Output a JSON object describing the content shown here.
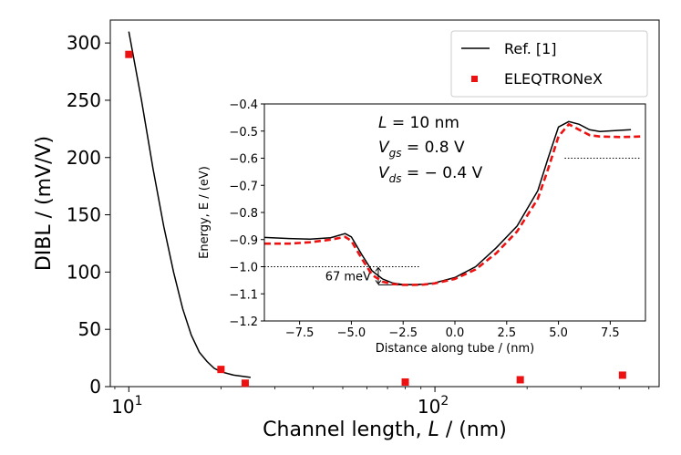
{
  "chart_data": [
    {
      "type": "line+scatter",
      "xscale": "log",
      "xlabel_pre": "Channel length, ",
      "xlabel_var": "L",
      "xlabel_post": " / (nm)",
      "ylabel": "DIBL / (mV/V)",
      "xlim": [
        8.7,
        540
      ],
      "ylim": [
        0,
        320
      ],
      "xticks": [
        {
          "value": 10,
          "base": "10",
          "exp": "1"
        },
        {
          "value": 100,
          "base": "10",
          "exp": "2"
        }
      ],
      "yticks": [
        0,
        50,
        100,
        150,
        200,
        250,
        300
      ],
      "series": [
        {
          "name": "Ref. [1]",
          "kind": "line",
          "color": "#000000",
          "x": [
            10,
            11,
            12,
            13,
            14,
            15,
            16,
            17,
            18,
            19,
            20,
            22,
            25
          ],
          "y": [
            310,
            250,
            190,
            140,
            100,
            68,
            45,
            30,
            22,
            16,
            13,
            10,
            8
          ]
        },
        {
          "name": "ELEQTRONeX",
          "kind": "scatter",
          "color": "#ee1111",
          "x": [
            10,
            20,
            24,
            80,
            190,
            410
          ],
          "y": [
            290,
            15,
            3,
            4,
            6,
            10
          ]
        }
      ],
      "legend": {
        "position": "top-right",
        "entries": [
          "Ref. [1]",
          "ELEQTRONeX"
        ]
      }
    },
    {
      "type": "line",
      "role": "inset",
      "xlabel": "Distance along tube / (nm)",
      "ylabel": "Energy, E / (eV)",
      "xlim": [
        -9.2,
        9.2
      ],
      "ylim": [
        -1.2,
        -0.4
      ],
      "xticks": [
        "−7.5",
        "−5.0",
        "−2.5",
        "0.0",
        "2.5",
        "5.0",
        "7.5"
      ],
      "xtick_values": [
        -7.5,
        -5.0,
        -2.5,
        0.0,
        2.5,
        5.0,
        7.5
      ],
      "yticks": [
        "−1.2",
        "−1.1",
        "−1.0",
        "−0.9",
        "−0.8",
        "−0.7",
        "−0.6",
        "−0.5",
        "−0.4"
      ],
      "ytick_values": [
        -1.2,
        -1.1,
        -1.0,
        -0.9,
        -0.8,
        -0.7,
        -0.6,
        -0.5,
        -0.4
      ],
      "series": [
        {
          "name": "Ref. [1]",
          "color": "#000000",
          "style": "solid",
          "x": [
            -9.2,
            -8.0,
            -7.0,
            -6.0,
            -5.3,
            -5.0,
            -4.5,
            -4.0,
            -3.5,
            -3.0,
            -2.5,
            -2.0,
            -1.5,
            -1.0,
            0.0,
            1.0,
            2.0,
            3.0,
            4.0,
            4.5,
            5.0,
            5.5,
            6.0,
            6.5,
            7.0,
            8.0,
            8.5
          ],
          "y": [
            -0.892,
            -0.896,
            -0.898,
            -0.893,
            -0.878,
            -0.89,
            -0.955,
            -1.015,
            -1.045,
            -1.06,
            -1.066,
            -1.066,
            -1.065,
            -1.06,
            -1.04,
            -1.0,
            -0.93,
            -0.85,
            -0.72,
            -0.6,
            -0.485,
            -0.465,
            -0.475,
            -0.495,
            -0.502,
            -0.497,
            -0.495
          ]
        },
        {
          "name": "ELEQTRONeX",
          "color": "#ee1111",
          "style": "dashed",
          "x": [
            -9.2,
            -8.0,
            -7.0,
            -6.0,
            -5.3,
            -5.0,
            -4.5,
            -4.0,
            -3.5,
            -3.0,
            -2.5,
            -2.0,
            -1.5,
            -1.0,
            0.0,
            1.0,
            2.0,
            3.0,
            4.0,
            4.5,
            5.0,
            5.5,
            6.0,
            6.5,
            7.0,
            8.0,
            9.0
          ],
          "y": [
            -0.915,
            -0.915,
            -0.91,
            -0.9,
            -0.89,
            -0.905,
            -0.97,
            -1.03,
            -1.055,
            -1.064,
            -1.067,
            -1.067,
            -1.066,
            -1.062,
            -1.045,
            -1.01,
            -0.95,
            -0.87,
            -0.75,
            -0.64,
            -0.52,
            -0.475,
            -0.495,
            -0.515,
            -0.52,
            -0.522,
            -0.52
          ]
        }
      ],
      "reference_lines": [
        {
          "y": -1.0,
          "x_from": -9.2,
          "x_to": -1.7,
          "style": "dotted"
        },
        {
          "y": -1.067,
          "x_from": -3.7,
          "x_to": -1.7,
          "style": "solid"
        },
        {
          "y": -0.6,
          "x_from": 5.3,
          "x_to": 9.0,
          "style": "dotted"
        }
      ],
      "gap_annotation": {
        "label": "67 meV",
        "x": -3.7,
        "y_top": -1.0,
        "y_bottom": -1.067
      },
      "text_annotations": [
        {
          "var": "L",
          "sub": "",
          "rest": " = 10 nm"
        },
        {
          "var": "V",
          "sub": "gs",
          "rest": " = 0.8 V"
        },
        {
          "var": "V",
          "sub": "ds",
          "rest": " = − 0.4 V"
        }
      ]
    }
  ]
}
